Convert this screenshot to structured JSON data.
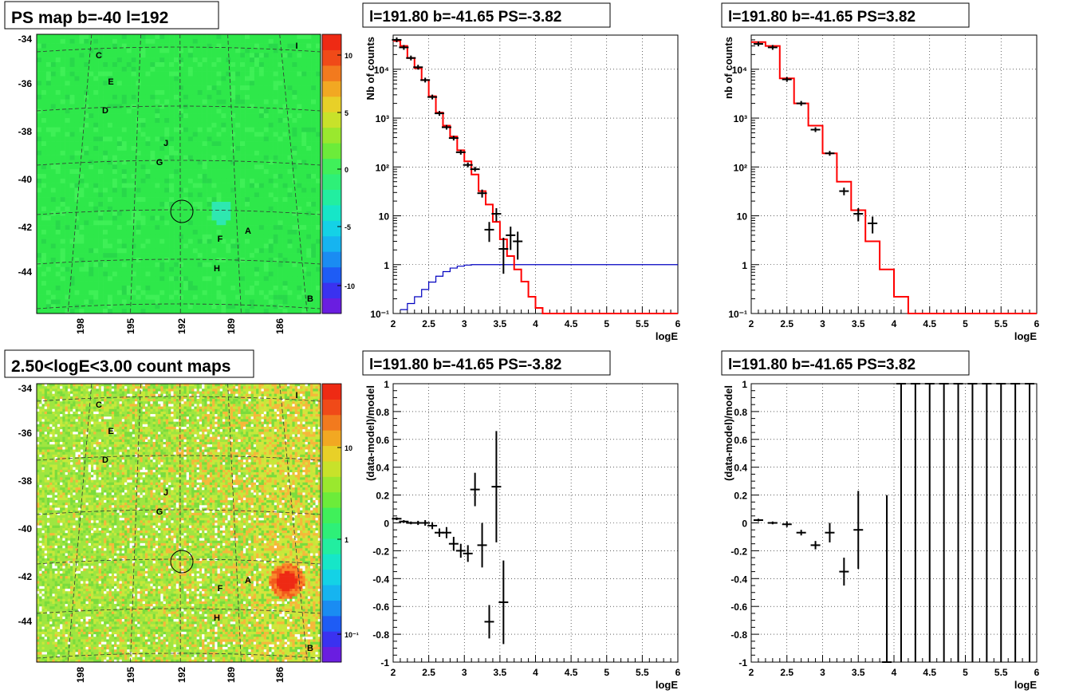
{
  "pads": [
    {
      "id": "map-ps",
      "title": "PS map b=-40 l=192",
      "ylabels": [
        "-34",
        "-36",
        "-38",
        "-40",
        "-42",
        "-44"
      ],
      "xlabels": [
        "198",
        "195",
        "192",
        "189",
        "186"
      ],
      "zlabels": [
        "10",
        "5",
        "0",
        "-5",
        "-10"
      ],
      "sources": [
        "C",
        "E",
        "D",
        "J",
        "G",
        "A",
        "F",
        "H",
        "B",
        "I"
      ],
      "colors": {
        "bg": "#2ee84a",
        "circle": "#33e8a8"
      }
    },
    {
      "id": "map-counts",
      "title": "2.50<logE<3.00 count maps",
      "ylabels": [
        "-34",
        "-36",
        "-38",
        "-40",
        "-42",
        "-44"
      ],
      "xlabels": [
        "198",
        "195",
        "192",
        "189",
        "186"
      ],
      "zlabels": [
        "10",
        "1",
        "10⁻¹"
      ],
      "sources": [
        "C",
        "E",
        "D",
        "J",
        "G",
        "A",
        "F",
        "H",
        "B",
        "I"
      ]
    }
  ],
  "chart_data": [
    {
      "id": "spec-left",
      "type": "line",
      "title": "l=191.80 b=-41.65 PS=-3.82",
      "xlabel": "logE",
      "ylabel": "Nb of counts",
      "yscale": "log",
      "xlim": [
        2,
        6
      ],
      "ylim": [
        0.1,
        50000
      ],
      "xticks": [
        "2",
        "2.5",
        "3",
        "3.5",
        "4",
        "4.5",
        "5",
        "5.5",
        "6"
      ],
      "yticks": [
        "10⁻¹",
        "1",
        "10",
        "10²",
        "10³",
        "10⁴"
      ],
      "model": {
        "name": "model",
        "color": "#ff0000",
        "edges": [
          2.0,
          2.1,
          2.2,
          2.3,
          2.4,
          2.5,
          2.6,
          2.7,
          2.8,
          2.9,
          3.0,
          3.1,
          3.2,
          3.3,
          3.4,
          3.5,
          3.6,
          3.7,
          3.8,
          3.9,
          4.0,
          4.1,
          4.2,
          4.3,
          6.0
        ],
        "values": [
          38000,
          30000,
          17000,
          10500,
          6000,
          2800,
          1300,
          700,
          420,
          220,
          130,
          70,
          32,
          17,
          7.5,
          3.3,
          1.5,
          0.8,
          0.45,
          0.22,
          0.13,
          0.1,
          0.1,
          0.1
        ]
      },
      "ref": {
        "name": "ref",
        "color": "#0000c0",
        "edges": [
          2.1,
          2.2,
          2.3,
          2.4,
          2.5,
          2.6,
          2.7,
          2.8,
          2.9,
          3.0,
          3.1,
          3.2,
          6.0
        ],
        "values": [
          0.12,
          0.16,
          0.22,
          0.31,
          0.44,
          0.58,
          0.72,
          0.85,
          0.93,
          0.98,
          1.0,
          1.0
        ]
      },
      "data": [
        {
          "x": 2.05,
          "y": 40000
        },
        {
          "x": 2.15,
          "y": 28000
        },
        {
          "x": 2.25,
          "y": 17000
        },
        {
          "x": 2.35,
          "y": 11000
        },
        {
          "x": 2.45,
          "y": 6000
        },
        {
          "x": 2.55,
          "y": 2700
        },
        {
          "x": 2.65,
          "y": 1250
        },
        {
          "x": 2.75,
          "y": 650
        },
        {
          "x": 2.85,
          "y": 390
        },
        {
          "x": 2.95,
          "y": 200
        },
        {
          "x": 3.05,
          "y": 110
        },
        {
          "x": 3.15,
          "y": 90
        },
        {
          "x": 3.25,
          "y": 29
        },
        {
          "x": 3.35,
          "y": 5.2
        },
        {
          "x": 3.45,
          "y": 11
        },
        {
          "x": 3.55,
          "y": 2.1
        },
        {
          "x": 3.65,
          "y": 4
        },
        {
          "x": 3.75,
          "y": 3
        }
      ]
    },
    {
      "id": "spec-right",
      "type": "line",
      "title": "l=191.80 b=-41.65 PS=3.82",
      "xlabel": "logE",
      "ylabel": "nb of counts",
      "yscale": "log",
      "xlim": [
        2,
        6
      ],
      "ylim": [
        0.1,
        50000
      ],
      "xticks": [
        "2",
        "2.5",
        "3",
        "3.5",
        "4",
        "4.5",
        "5",
        "5.5",
        "6"
      ],
      "yticks": [
        "10⁻¹",
        "1",
        "10",
        "10²",
        "10³",
        "10⁴"
      ],
      "model": {
        "name": "model",
        "color": "#ff0000",
        "edges": [
          2.0,
          2.2,
          2.4,
          2.6,
          2.8,
          3.0,
          3.2,
          3.4,
          3.6,
          3.8,
          4.0,
          4.2,
          6.0
        ],
        "values": [
          36000,
          30000,
          6500,
          2000,
          700,
          190,
          50,
          13,
          3.0,
          0.8,
          0.22,
          0.1
        ]
      },
      "data": [
        {
          "x": 2.1,
          "y": 33000
        },
        {
          "x": 2.3,
          "y": 28000
        },
        {
          "x": 2.5,
          "y": 6200
        },
        {
          "x": 2.7,
          "y": 2000
        },
        {
          "x": 2.9,
          "y": 580
        },
        {
          "x": 3.1,
          "y": 190
        },
        {
          "x": 3.3,
          "y": 32
        },
        {
          "x": 3.5,
          "y": 11
        },
        {
          "x": 3.7,
          "y": 7
        }
      ]
    },
    {
      "id": "resid-left",
      "type": "scatter",
      "title": "l=191.80 b=-41.65 PS=-3.82",
      "xlabel": "logE",
      "ylabel": "(data-model)/model",
      "xlim": [
        2,
        6
      ],
      "ylim": [
        -1,
        1
      ],
      "xticks": [
        "2",
        "2.5",
        "3",
        "3.5",
        "4",
        "4.5",
        "5",
        "5.5",
        "6"
      ],
      "yticks": [
        "-1",
        "-0.8",
        "-0.6",
        "-0.4",
        "-0.2",
        "0",
        "0.2",
        "0.4",
        "0.6",
        "0.8",
        "1"
      ],
      "data": [
        {
          "x": 2.05,
          "y": 0.03,
          "e": 0.01
        },
        {
          "x": 2.15,
          "y": 0.01,
          "e": 0.01
        },
        {
          "x": 2.25,
          "y": 0.0,
          "e": 0.01
        },
        {
          "x": 2.35,
          "y": 0.0,
          "e": 0.015
        },
        {
          "x": 2.45,
          "y": 0.0,
          "e": 0.02
        },
        {
          "x": 2.55,
          "y": -0.02,
          "e": 0.025
        },
        {
          "x": 2.65,
          "y": -0.07,
          "e": 0.03
        },
        {
          "x": 2.75,
          "y": -0.07,
          "e": 0.04
        },
        {
          "x": 2.85,
          "y": -0.15,
          "e": 0.05
        },
        {
          "x": 2.95,
          "y": -0.2,
          "e": 0.05
        },
        {
          "x": 3.05,
          "y": -0.22,
          "e": 0.06
        },
        {
          "x": 3.15,
          "y": 0.24,
          "e": 0.12
        },
        {
          "x": 3.25,
          "y": -0.16,
          "e": 0.16
        },
        {
          "x": 3.35,
          "y": -0.71,
          "e": 0.12
        },
        {
          "x": 3.45,
          "y": 0.26,
          "e": 0.4
        },
        {
          "x": 3.55,
          "y": -0.57,
          "e": 0.3
        }
      ]
    },
    {
      "id": "resid-right",
      "type": "scatter",
      "title": "l=191.80 b=-41.65 PS=3.82",
      "xlabel": "logE",
      "ylabel": "(data-model)/model",
      "xlim": [
        2,
        6
      ],
      "ylim": [
        -1,
        1
      ],
      "xticks": [
        "2",
        "2.5",
        "3",
        "3.5",
        "4",
        "4.5",
        "5",
        "5.5",
        "6"
      ],
      "yticks": [
        "-1",
        "-0.8",
        "-0.6",
        "-0.4",
        "-0.2",
        "0",
        "0.2",
        "0.4",
        "0.6",
        "0.8",
        "1"
      ],
      "data": [
        {
          "x": 2.1,
          "y": 0.02,
          "e": 0.01
        },
        {
          "x": 2.3,
          "y": 0.0,
          "e": 0.01
        },
        {
          "x": 2.5,
          "y": -0.01,
          "e": 0.02
        },
        {
          "x": 2.7,
          "y": -0.07,
          "e": 0.02
        },
        {
          "x": 2.9,
          "y": -0.16,
          "e": 0.03
        },
        {
          "x": 3.1,
          "y": -0.07,
          "e": 0.07
        },
        {
          "x": 3.3,
          "y": -0.35,
          "e": 0.1
        },
        {
          "x": 3.5,
          "y": -0.05,
          "e": 0.28
        },
        {
          "x": 3.9,
          "y": -1,
          "e": 1.2
        },
        {
          "x": 4.1,
          "y": 1,
          "e": 2
        },
        {
          "x": 4.3,
          "y": 1,
          "e": 2
        },
        {
          "x": 4.5,
          "y": 1,
          "e": 2
        },
        {
          "x": 4.7,
          "y": 1,
          "e": 2
        },
        {
          "x": 4.9,
          "y": 1,
          "e": 2
        },
        {
          "x": 5.1,
          "y": 1,
          "e": 2
        },
        {
          "x": 5.3,
          "y": 1,
          "e": 2
        },
        {
          "x": 5.5,
          "y": 1,
          "e": 2
        },
        {
          "x": 5.7,
          "y": 1,
          "e": 2
        },
        {
          "x": 5.9,
          "y": 1,
          "e": 2
        }
      ]
    }
  ]
}
